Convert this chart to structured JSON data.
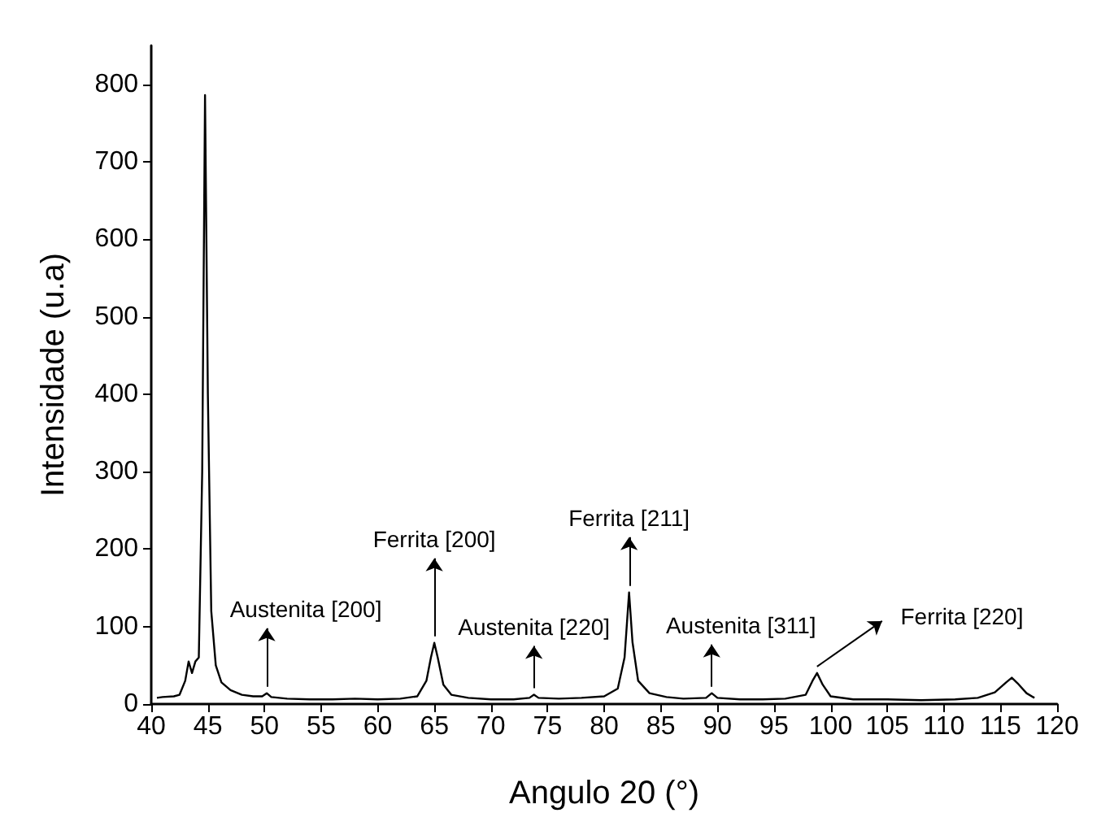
{
  "chart_data": {
    "type": "line",
    "xlabel": "Angulo 20 (°)",
    "ylabel": "Intensidade (u.a)",
    "xlim": [
      40,
      120
    ],
    "xticks": [
      40,
      45,
      50,
      55,
      60,
      65,
      70,
      75,
      80,
      85,
      90,
      95,
      100,
      105,
      110,
      115,
      120
    ],
    "ylim": [
      0,
      850
    ],
    "yticks": [
      0,
      100,
      200,
      300,
      400,
      500,
      600,
      700,
      800
    ],
    "marker": "none",
    "line_style": "solid",
    "series": [
      {
        "color": "#000000",
        "x": [
          40.5,
          41,
          42,
          42.5,
          43,
          43.3,
          43.6,
          43.9,
          44.2,
          44.5,
          44.75,
          45,
          45.3,
          45.7,
          46.2,
          47,
          48,
          49,
          49.8,
          50.2,
          50.6,
          52,
          54,
          56,
          58,
          60,
          62,
          63.5,
          64.3,
          64.7,
          65,
          65.3,
          65.8,
          66.5,
          68,
          70,
          72,
          73.4,
          73.8,
          74.2,
          76,
          78,
          80,
          81.2,
          81.8,
          82.2,
          82.5,
          83,
          84,
          85.5,
          87,
          89,
          89.5,
          90,
          92,
          94,
          96,
          97.8,
          98.4,
          98.8,
          99.3,
          100,
          102,
          105,
          108,
          111,
          113,
          114.5,
          115.5,
          116,
          116.5,
          117.3,
          118
        ],
        "values": [
          8,
          9,
          10,
          12,
          30,
          55,
          40,
          55,
          60,
          300,
          786,
          400,
          120,
          50,
          28,
          18,
          12,
          10,
          10,
          14,
          9,
          7,
          6,
          6,
          7,
          6,
          7,
          10,
          30,
          60,
          79,
          60,
          25,
          12,
          8,
          6,
          6,
          8,
          12,
          8,
          7,
          8,
          10,
          20,
          60,
          144,
          80,
          30,
          14,
          9,
          7,
          8,
          14,
          8,
          6,
          6,
          7,
          12,
          30,
          40,
          25,
          10,
          6,
          6,
          5,
          6,
          8,
          15,
          28,
          34,
          27,
          14,
          8
        ]
      }
    ],
    "annotations": [
      {
        "text": "Austenita [200]",
        "x": 50.2,
        "y": 14
      },
      {
        "text": "Ferrita [200]",
        "x": 65,
        "y": 79
      },
      {
        "text": "Austenita [220]",
        "x": 73.8,
        "y": 12
      },
      {
        "text": "Ferrita [211]",
        "x": 82.2,
        "y": 144
      },
      {
        "text": "Austenita [311]",
        "x": 89.5,
        "y": 14
      },
      {
        "text": "Ferrita [220]",
        "x": 98.8,
        "y": 40
      }
    ]
  }
}
